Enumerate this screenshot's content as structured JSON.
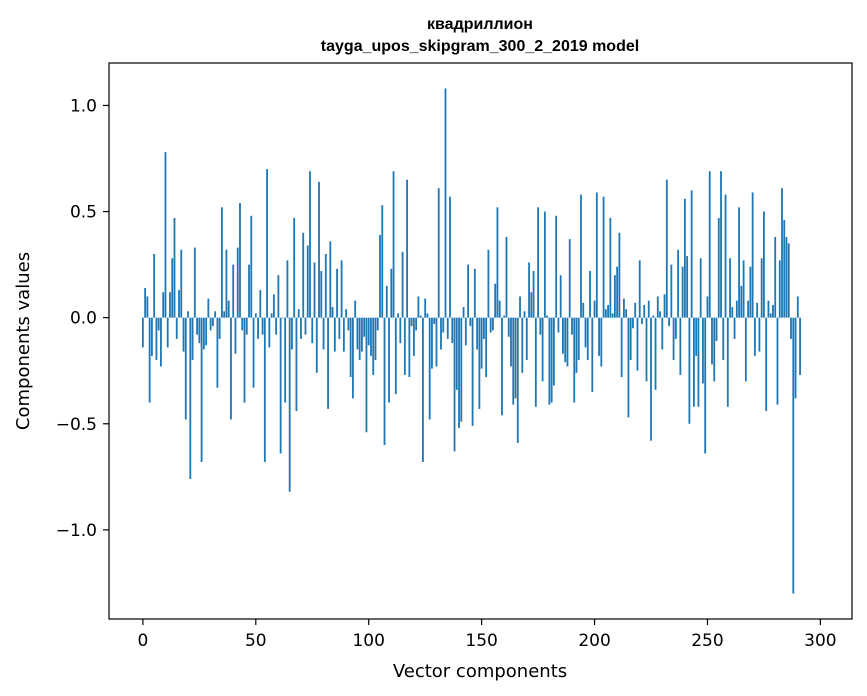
{
  "chart_data": {
    "type": "bar",
    "title_line1": "квадриллион",
    "title_line2": "tayga_upos_skipgram_300_2_2019 model",
    "xlabel": "Vector components",
    "ylabel": "Components values",
    "xlim": [
      -15,
      314
    ],
    "ylim": [
      -1.42,
      1.2
    ],
    "xticks": [
      0,
      50,
      100,
      150,
      200,
      250,
      300
    ],
    "yticks": [
      -1.0,
      -0.5,
      0.0,
      0.5,
      1.0
    ],
    "ytick_labels": [
      "−1.0",
      "−0.5",
      "0.0",
      "0.5",
      "1.0"
    ],
    "bar_color": "#1f77b4",
    "values": [
      -0.14,
      0.14,
      0.1,
      -0.4,
      -0.18,
      0.3,
      -0.2,
      -0.06,
      -0.23,
      0.12,
      0.78,
      -0.14,
      0.12,
      0.28,
      0.47,
      -0.1,
      0.13,
      0.32,
      -0.16,
      -0.48,
      0.03,
      -0.76,
      -0.2,
      0.33,
      -0.08,
      -0.12,
      -0.68,
      -0.15,
      -0.13,
      0.09,
      -0.06,
      -0.04,
      0.03,
      -0.33,
      -0.1,
      0.52,
      0.03,
      0.32,
      0.08,
      -0.48,
      0.25,
      -0.17,
      0.33,
      0.54,
      -0.06,
      -0.4,
      -0.08,
      0.25,
      0.48,
      -0.33,
      0.02,
      -0.1,
      0.13,
      -0.08,
      -0.68,
      0.7,
      -0.14,
      0.02,
      0.11,
      -0.08,
      0.2,
      -0.64,
      0.0,
      -0.4,
      0.27,
      -0.82,
      -0.15,
      0.47,
      -0.44,
      0.04,
      -0.1,
      0.4,
      -0.08,
      0.34,
      0.69,
      -0.12,
      0.26,
      -0.26,
      0.64,
      0.22,
      -0.15,
      0.3,
      -0.43,
      0.36,
      0.05,
      -0.16,
      0.23,
      -0.1,
      0.27,
      -0.16,
      0.04,
      -0.06,
      -0.28,
      -0.38,
      0.08,
      -0.15,
      -0.2,
      -0.16,
      -0.09,
      -0.54,
      -0.13,
      -0.18,
      -0.27,
      -0.2,
      -0.06,
      0.39,
      0.53,
      -0.6,
      0.15,
      -0.4,
      0.23,
      0.69,
      -0.36,
      0.02,
      -0.12,
      0.31,
      -0.27,
      0.65,
      -0.28,
      -0.04,
      -0.18,
      -0.06,
      0.1,
      0.01,
      -0.68,
      0.09,
      0.02,
      -0.48,
      -0.24,
      -0.03,
      -0.23,
      0.61,
      -0.15,
      -0.07,
      1.08,
      -0.1,
      0.57,
      -0.12,
      -0.63,
      -0.34,
      -0.52,
      -0.49,
      0.05,
      -0.13,
      0.25,
      -0.04,
      -0.51,
      0.23,
      -0.15,
      -0.43,
      -0.24,
      -0.1,
      -0.28,
      0.32,
      -0.07,
      -0.06,
      0.16,
      0.52,
      0.08,
      -0.46,
      0.01,
      0.38,
      -0.09,
      -0.23,
      -0.41,
      -0.38,
      -0.59,
      0.1,
      -0.26,
      0.03,
      -0.2,
      0.26,
      0.12,
      0.22,
      -0.42,
      0.52,
      -0.08,
      -0.3,
      0.5,
      0.01,
      -0.41,
      -0.4,
      -0.32,
      0.48,
      -0.07,
      0.2,
      -0.17,
      -0.21,
      -0.23,
      0.37,
      -0.08,
      -0.4,
      -0.26,
      -0.2,
      0.58,
      0.07,
      -0.14,
      -0.2,
      0.22,
      -0.35,
      0.08,
      0.59,
      -0.18,
      -0.23,
      0.57,
      0.04,
      0.06,
      0.47,
      0.02,
      0.2,
      0.24,
      0.4,
      -0.28,
      0.09,
      0.04,
      -0.47,
      -0.2,
      -0.05,
      0.07,
      -0.25,
      0.27,
      -0.03,
      0.06,
      -0.3,
      0.08,
      -0.58,
      0.01,
      -0.34,
      0.1,
      0.03,
      -0.15,
      0.11,
      0.65,
      -0.04,
      0.25,
      -0.2,
      -0.1,
      0.32,
      -0.27,
      0.24,
      0.56,
      0.29,
      -0.5,
      0.6,
      -0.42,
      -0.18,
      -0.42,
      0.28,
      -0.31,
      -0.64,
      0.1,
      0.69,
      -0.22,
      -0.3,
      -0.11,
      0.47,
      0.69,
      -0.2,
      0.58,
      -0.42,
      0.28,
      0.05,
      -0.1,
      0.08,
      0.52,
      0.15,
      0.27,
      -0.3,
      0.08,
      0.24,
      0.59,
      -0.18,
      0.07,
      -0.16,
      0.28,
      0.5,
      -0.44,
      0.08,
      0.02,
      0.06,
      0.38,
      -0.41,
      0.27,
      0.61,
      0.46,
      0.38,
      0.35,
      -0.1,
      -1.3,
      -0.38,
      0.1,
      -0.27
    ]
  }
}
